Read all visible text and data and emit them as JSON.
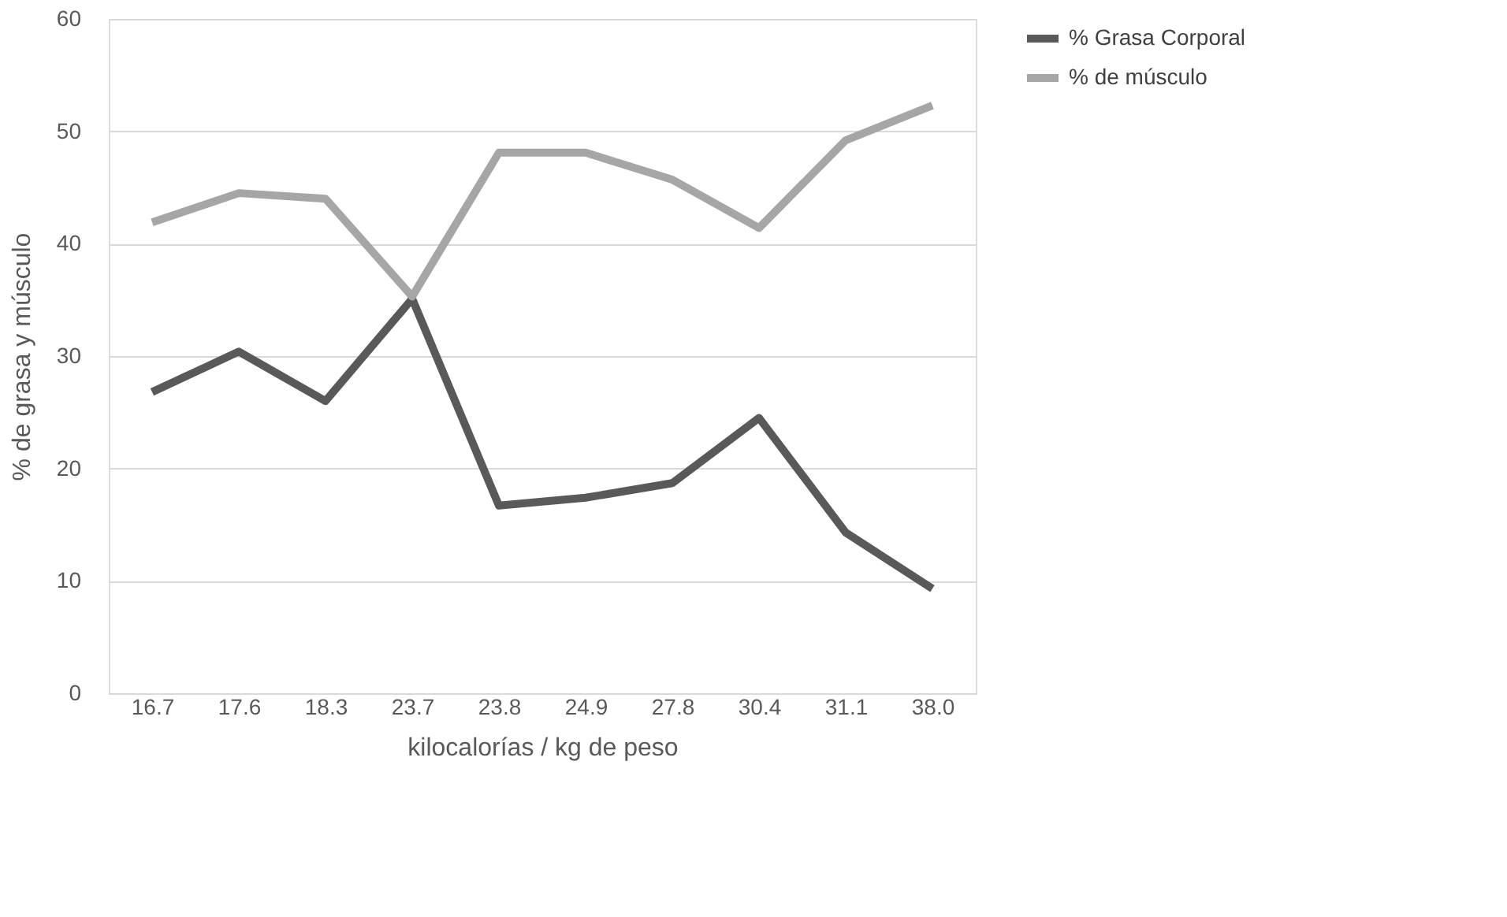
{
  "chart_data": {
    "type": "line",
    "xlabel": "kilocalorías / kg de peso",
    "ylabel": "% de grasa y músculo",
    "categories": [
      "16.7",
      "17.6",
      "18.3",
      "23.7",
      "23.8",
      "24.9",
      "27.8",
      "30.4",
      "31.1",
      "38.0"
    ],
    "series": [
      {
        "name": "% Grasa Corporal",
        "color": "#595959",
        "values": [
          26.8,
          30.4,
          26.0,
          35.1,
          16.7,
          17.4,
          18.7,
          24.5,
          14.3,
          9.3
        ]
      },
      {
        "name": "% de músculo",
        "color": "#a6a6a6",
        "values": [
          41.9,
          44.5,
          44.0,
          35.3,
          48.1,
          48.1,
          45.7,
          41.4,
          49.2,
          52.3
        ]
      }
    ],
    "ylim": [
      0,
      60
    ],
    "yticks": [
      0,
      10,
      20,
      30,
      40,
      50,
      60
    ],
    "grid": "y",
    "legend": "right",
    "marker": "none",
    "line_style": "solid"
  }
}
